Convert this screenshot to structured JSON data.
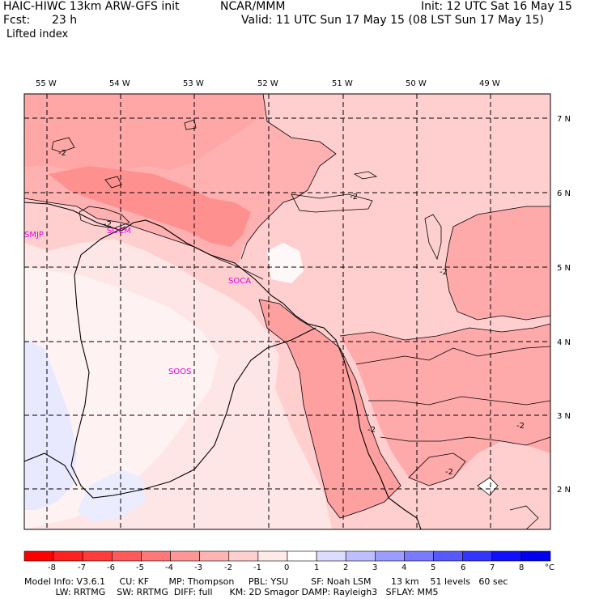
{
  "header": {
    "model": "HAIC-HIWC 13km ARW-GFS init",
    "center": "NCAR/MMM",
    "fcst_label": "Fcst:",
    "fcst_value": "23 h",
    "field": "Lifted index",
    "init": "Init: 12 UTC Sat 16 May 15",
    "valid": "Valid: 11 UTC Sun 17 May 15 (08 LST Sun 17 May 15)"
  },
  "map": {
    "lon_labels": [
      "55 W",
      "54 W",
      "53 W",
      "52 W",
      "51 W",
      "50 W",
      "49 W"
    ],
    "lat_labels": [
      "7 N",
      "6 N",
      "5 N",
      "4 N",
      "3 N",
      "2 N"
    ],
    "contour_labels": [
      "-2",
      "-2",
      "-2",
      "-2",
      "-2",
      "-2",
      "-2"
    ],
    "stations": [
      "SMJP",
      "SOCM",
      "SOCA",
      "SOOS"
    ]
  },
  "colorbar": {
    "ticks": [
      "-8",
      "-7",
      "-6",
      "-5",
      "-4",
      "-3",
      "-2",
      "-1",
      "0",
      "1",
      "2",
      "3",
      "4",
      "5",
      "6",
      "7",
      "8"
    ],
    "unit": "°C",
    "colors": [
      "#ff0000",
      "#ff2020",
      "#ff3c3c",
      "#ff5a5a",
      "#ff7878",
      "#ff9696",
      "#ffb4b4",
      "#ffcfcf",
      "#ffeaea",
      "#ffffff",
      "#dcdcff",
      "#bebeff",
      "#9c9cff",
      "#7a7aff",
      "#5858ff",
      "#3434ff",
      "#1010ff",
      "#0000ee"
    ]
  },
  "footer": {
    "line1": "Model Info: V3.6.1     CU: KF       MP: Thompson     PBL: YSU        SF: Noah LSM       13 km    51 levels   60 sec",
    "line2": "           LW: RRTMG    SW: RRTMG  DIFF: full      KM: 2D Smagor DAMP: Rayleigh3   SFLAY: MM5"
  }
}
